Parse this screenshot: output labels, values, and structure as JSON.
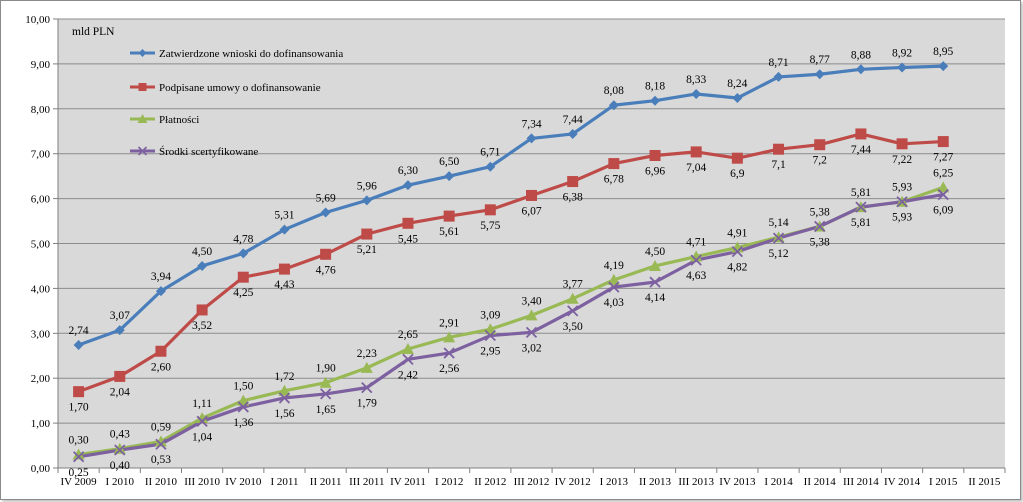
{
  "chart_data": {
    "type": "line",
    "ylabel": "mld PLN",
    "ylim": [
      0,
      10
    ],
    "yticks": [
      "0,00",
      "1,00",
      "2,00",
      "3,00",
      "4,00",
      "5,00",
      "6,00",
      "7,00",
      "8,00",
      "9,00",
      "10,00"
    ],
    "grid": true,
    "legend_position": "top-left inside",
    "categories": [
      "IV 2009",
      "I 2010",
      "II 2010",
      "III 2010",
      "IV 2010",
      "I 2011",
      "II 2011",
      "III 2011",
      "IV 2011",
      "I 2012",
      "II 2012",
      "III 2012",
      "IV 2012",
      "I 2013",
      "II 2013",
      "III 2013",
      "IV 2013",
      "I 2014",
      "II 2014",
      "III 2014",
      "IV 2014",
      "I 2015",
      "II 2015"
    ],
    "series": [
      {
        "name": "Zatwierdzone wnioski do dofinansowania",
        "color": "#4a7ebb",
        "marker": "diamond",
        "values": [
          2.74,
          3.07,
          3.94,
          4.5,
          4.78,
          5.31,
          5.69,
          5.96,
          6.3,
          6.5,
          6.71,
          7.34,
          7.44,
          8.08,
          8.18,
          8.33,
          8.24,
          8.71,
          8.77,
          8.88,
          8.92,
          8.95,
          null
        ],
        "labels": [
          "2,74",
          "3,07",
          "3,94",
          "4,50",
          "4,78",
          "5,31",
          "5,69",
          "5,96",
          "6,30",
          "6,50",
          "6,71",
          "7,34",
          "7,44",
          "8,08",
          "8,18",
          "8,33",
          "8,24",
          "8,71",
          "8,77",
          "8,88",
          "8,92",
          "8,95",
          null
        ]
      },
      {
        "name": "Podpisane umowy o dofinansowanie",
        "color": "#be4b48",
        "marker": "square",
        "values": [
          1.7,
          2.04,
          2.6,
          3.52,
          4.25,
          4.43,
          4.76,
          5.21,
          5.45,
          5.61,
          5.75,
          6.07,
          6.38,
          6.78,
          6.96,
          7.04,
          6.9,
          7.1,
          7.2,
          7.44,
          7.22,
          7.27,
          null
        ],
        "labels": [
          "1,70",
          "2,04",
          "2,60",
          "3,52",
          "4,25",
          "4,43",
          "4,76",
          "5,21",
          "5,45",
          "5,61",
          "5,75",
          "6,07",
          "6,38",
          "6,78",
          "6,96",
          "7,04",
          "6,9",
          "7,1",
          "7,2",
          "7,44",
          "7,22",
          "7,27",
          null
        ]
      },
      {
        "name": "Płatności",
        "color": "#98b954",
        "marker": "triangle",
        "values": [
          0.3,
          0.43,
          0.59,
          1.11,
          1.5,
          1.72,
          1.9,
          2.23,
          2.65,
          2.91,
          3.09,
          3.4,
          3.77,
          4.19,
          4.5,
          4.71,
          4.91,
          5.14,
          5.38,
          5.81,
          5.93,
          6.25,
          null
        ],
        "labels": [
          "0,30",
          "0,43",
          "0,59",
          "1,11",
          "1,50",
          "1,72",
          "1,90",
          "2,23",
          "2,65",
          "2,91",
          "3,09",
          "3,40",
          "3,77",
          "4,19",
          "4,50",
          "4,71",
          "4,91",
          "5,14",
          "5,38",
          "5,81",
          "5,93",
          "6,25",
          null
        ]
      },
      {
        "name": "Środki scertyfikowane",
        "color": "#7d60a0",
        "marker": "x",
        "values": [
          0.25,
          0.4,
          0.53,
          1.04,
          1.36,
          1.56,
          1.65,
          1.79,
          2.42,
          2.56,
          2.95,
          3.02,
          3.5,
          4.03,
          4.14,
          4.63,
          4.82,
          5.12,
          5.38,
          5.81,
          5.93,
          6.09,
          null
        ],
        "labels": [
          "0,25",
          "0,40",
          "0,53",
          "1,04",
          "1,36",
          "1,56",
          "1,65",
          "1,79",
          "2,42",
          "2,56",
          "2,95",
          "3,02",
          "3,50",
          "4,03",
          "4,14",
          "4,63",
          "4,82",
          "5,12",
          "5,38",
          "5,81",
          "5,93",
          "6,09",
          null
        ]
      }
    ]
  }
}
